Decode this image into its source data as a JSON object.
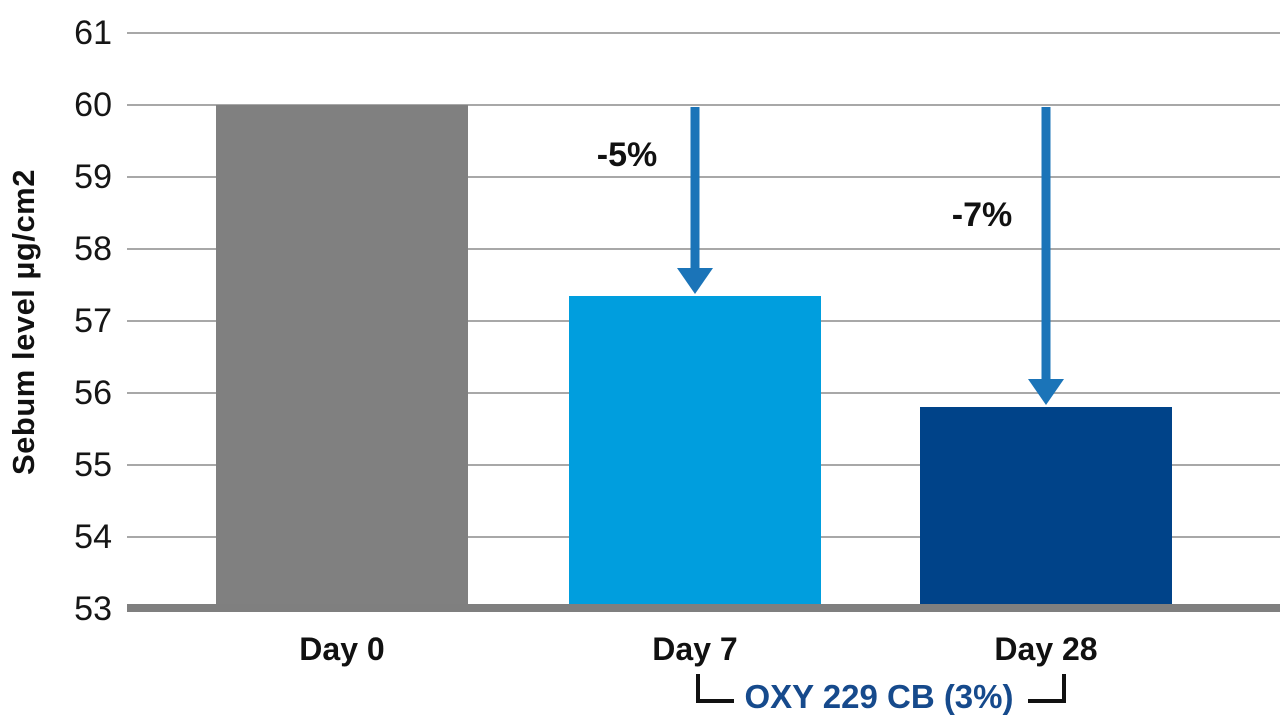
{
  "chart_data": {
    "type": "bar",
    "title": "",
    "ylabel": "Sebum level µg/cm2",
    "xlabel": "",
    "categories": [
      "Day 0",
      "Day 7",
      "Day 28"
    ],
    "values": [
      60,
      57.35,
      55.8
    ],
    "ylim": [
      53,
      61
    ],
    "yticks": [
      61,
      60,
      59,
      58,
      57,
      56,
      55,
      54,
      53
    ],
    "grid": true,
    "legend": "none",
    "bar_colors": [
      "#808080",
      "#009EDE",
      "#004389"
    ],
    "gridline_color": "#A8A8A8",
    "baseline_color": "#7F7F7F",
    "arrow_color": "#1B74B8",
    "annotations": [
      {
        "label": "-5%",
        "from_value": 60,
        "to_category": "Day 7"
      },
      {
        "label": "-7%",
        "from_value": 60,
        "to_category": "Day 28"
      }
    ],
    "group_label": "OXY 229 CB (3%)",
    "group_label_color": "#164A8C",
    "group_members": [
      "Day 7",
      "Day 28"
    ]
  }
}
